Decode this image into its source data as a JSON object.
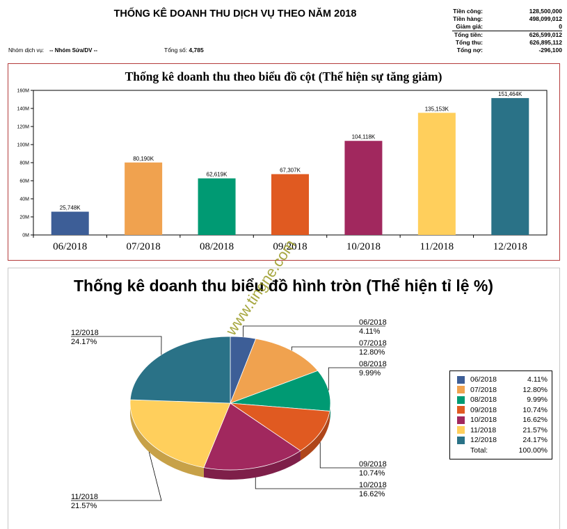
{
  "header": {
    "title": "THỐNG KÊ DOANH THU DỊCH VỤ THEO NĂM 2018",
    "filter_label": "Nhóm dịch vụ:",
    "filter_value": "-- Nhóm Sửa/DV --",
    "count_label": "Tổng số:",
    "count_value": "4,785"
  },
  "summary": [
    {
      "label": "Tiền công:",
      "value": "128,500,000"
    },
    {
      "label": "Tiền hàng:",
      "value": "498,099,012"
    },
    {
      "label": "Giảm giá:",
      "value": "0"
    },
    {
      "label": "Tổng tiền:",
      "value": "626,599,012"
    },
    {
      "label": "Tổng thu:",
      "value": "626,895,112"
    },
    {
      "label": "Tổng nợ:",
      "value": "-296,100"
    }
  ],
  "chart_data": [
    {
      "type": "bar",
      "title": "Thống kê doanh thu theo biểu đồ cột (Thể hiện sự tăng giảm)",
      "categories": [
        "06/2018",
        "07/2018",
        "08/2018",
        "09/2018",
        "10/2018",
        "11/2018",
        "12/2018"
      ],
      "values": [
        25748,
        80190,
        62619,
        67307,
        104118,
        135153,
        151464
      ],
      "data_labels": [
        "25,748K",
        "80,190K",
        "62,619K",
        "67,307K",
        "104,118K",
        "135,153K",
        "151,464K"
      ],
      "value_unit": "K",
      "ylim": [
        0,
        160000
      ],
      "yticks": [
        0,
        20000,
        40000,
        60000,
        80000,
        100000,
        120000,
        140000,
        160000
      ],
      "ytick_labels": [
        "0M",
        "20M",
        "40M",
        "60M",
        "80M",
        "100M",
        "120M",
        "140M",
        "160M"
      ],
      "colors": [
        "#3d5e97",
        "#f0a24f",
        "#009a73",
        "#e05a21",
        "#a1285e",
        "#ffcf5c",
        "#2a7287"
      ],
      "grid": false,
      "xlabel": "",
      "ylabel": ""
    },
    {
      "type": "pie",
      "title": "Thống kê doanh thu biểu đồ hình tròn (Thể hiện tỉ lệ %)",
      "categories": [
        "06/2018",
        "07/2018",
        "08/2018",
        "09/2018",
        "10/2018",
        "11/2018",
        "12/2018"
      ],
      "values": [
        4.11,
        12.8,
        9.99,
        10.74,
        16.62,
        21.57,
        24.17
      ],
      "value_labels": [
        "4.11%",
        "12.80%",
        "9.99%",
        "10.74%",
        "16.62%",
        "21.57%",
        "24.17%"
      ],
      "colors": [
        "#3d5e97",
        "#f0a24f",
        "#009a73",
        "#e05a21",
        "#a1285e",
        "#ffcf5c",
        "#2a7287"
      ],
      "legend": {
        "placement": "right",
        "total_label": "Total:",
        "total_value": "100.00%"
      }
    }
  ],
  "watermark": "www.tingne.com"
}
